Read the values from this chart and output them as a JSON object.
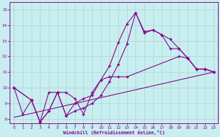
{
  "xlabel": "Windchill (Refroidissement éolien,°C)",
  "bg_color": "#c8eef0",
  "line_color": "#880088",
  "grid_color": "#b0d8d8",
  "xlim": [
    -0.5,
    23.5
  ],
  "ylim": [
    7.7,
    15.5
  ],
  "yticks": [
    8,
    9,
    10,
    11,
    12,
    13,
    14,
    15
  ],
  "xticks": [
    0,
    1,
    2,
    3,
    4,
    5,
    6,
    7,
    8,
    9,
    10,
    11,
    12,
    13,
    14,
    15,
    16,
    17,
    18,
    19,
    20,
    21,
    22,
    23
  ],
  "line1_x": [
    0,
    1,
    2,
    3,
    4,
    5,
    6,
    7,
    8,
    9,
    10,
    11,
    12,
    13,
    14,
    15,
    16,
    17,
    18,
    19,
    20,
    21,
    22,
    23
  ],
  "line1_y": [
    10.0,
    8.3,
    9.2,
    7.8,
    8.5,
    9.7,
    8.2,
    9.0,
    9.3,
    9.5,
    10.5,
    11.4,
    12.9,
    14.1,
    14.8,
    13.6,
    13.7,
    13.4,
    13.1,
    12.5,
    11.9,
    11.2,
    11.2,
    11.0
  ],
  "line2_x": [
    0,
    2,
    3,
    4,
    5,
    6,
    7,
    8,
    9,
    10,
    11,
    12,
    13,
    19,
    20,
    21,
    22,
    23
  ],
  "line2_y": [
    10.0,
    9.2,
    7.8,
    9.7,
    9.7,
    9.7,
    9.3,
    8.3,
    9.7,
    10.5,
    10.7,
    10.7,
    10.7,
    12.0,
    11.9,
    11.2,
    11.2,
    11.0
  ],
  "line3_x": [
    0,
    2,
    3,
    4,
    5,
    6,
    7,
    8,
    9,
    10,
    11,
    12,
    13,
    14,
    15,
    16,
    17,
    18,
    19,
    20,
    21,
    22,
    23
  ],
  "line3_y": [
    10.0,
    9.2,
    7.8,
    8.5,
    9.7,
    8.2,
    8.5,
    8.7,
    9.0,
    9.5,
    10.4,
    11.5,
    12.8,
    14.8,
    13.5,
    13.7,
    13.4,
    12.5,
    12.5,
    11.9,
    11.2,
    11.2,
    11.0
  ],
  "trend_x": [
    0,
    23
  ],
  "trend_y": [
    8.1,
    11.0
  ]
}
